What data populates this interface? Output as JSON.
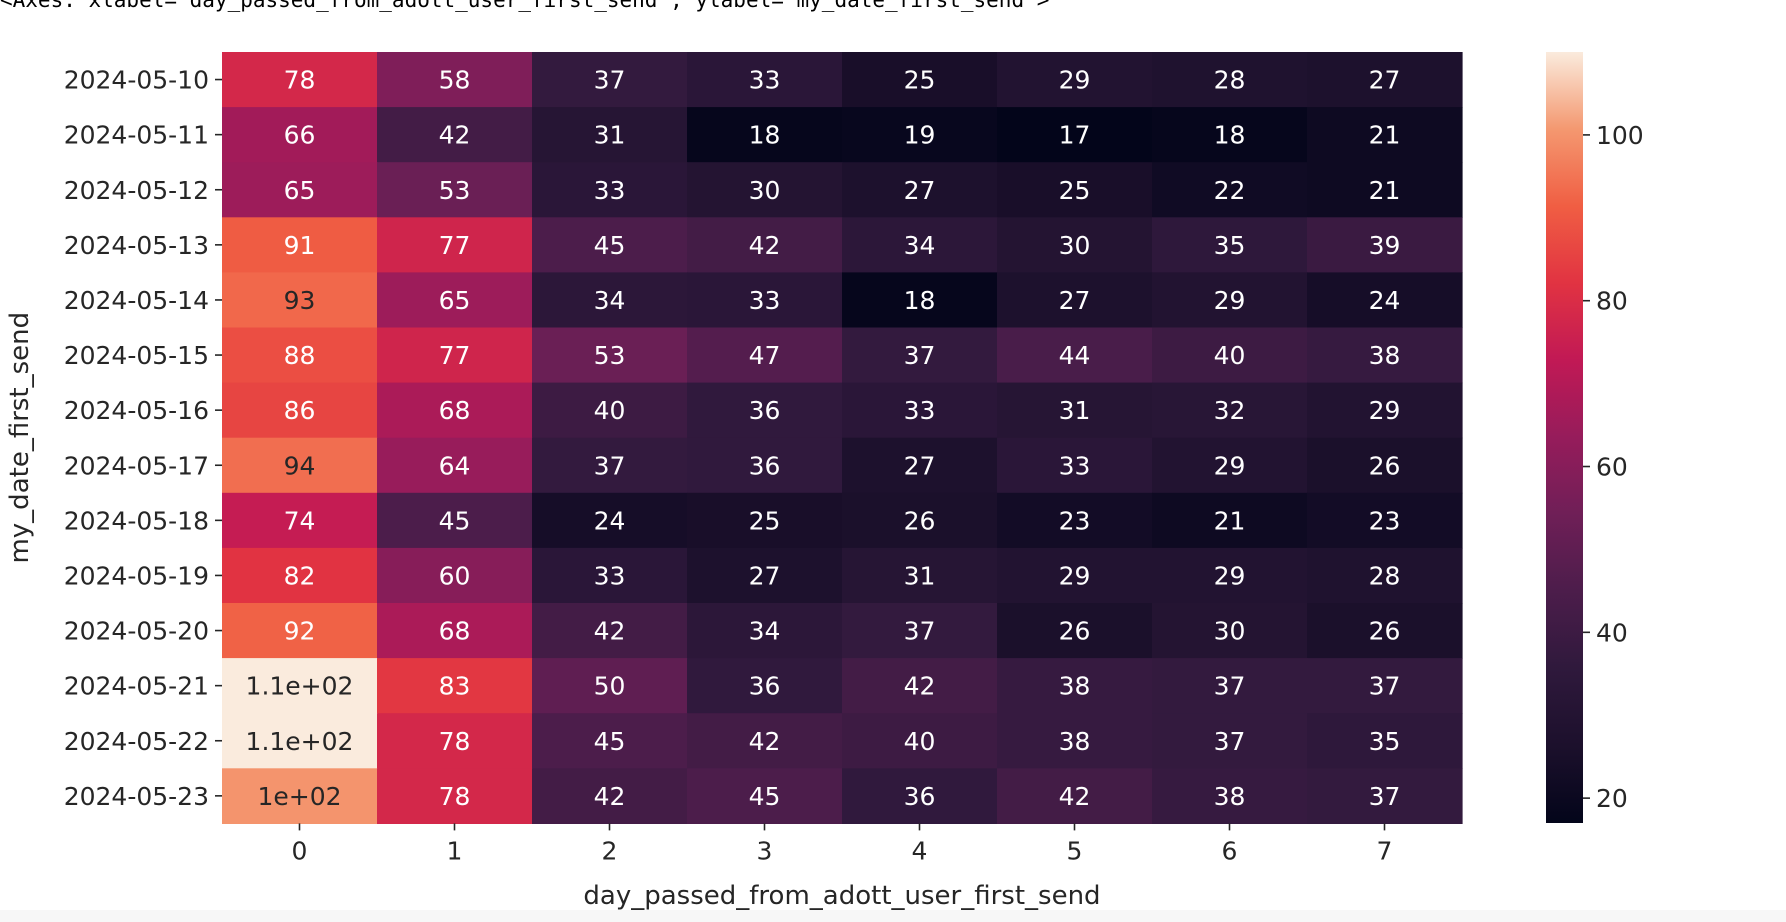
{
  "axes_repr": "<Axes: xlabel='day_passed_from_adott_user_first_send', ylabel='my_date_first_send'>",
  "colors": {
    "cmap": "rocket",
    "text_dark": "#262626",
    "cell_text_light": "#ffffff"
  },
  "chart_data": {
    "type": "heatmap",
    "xlabel": "day_passed_from_adott_user_first_send",
    "ylabel": "my_date_first_send",
    "x_categories": [
      "0",
      "1",
      "2",
      "3",
      "4",
      "5",
      "6",
      "7"
    ],
    "y_categories": [
      "2024-05-10",
      "2024-05-11",
      "2024-05-12",
      "2024-05-13",
      "2024-05-14",
      "2024-05-15",
      "2024-05-16",
      "2024-05-17",
      "2024-05-18",
      "2024-05-19",
      "2024-05-20",
      "2024-05-21",
      "2024-05-22",
      "2024-05-23"
    ],
    "values": [
      [
        78,
        58,
        37,
        33,
        25,
        29,
        28,
        27
      ],
      [
        66,
        42,
        31,
        18,
        19,
        17,
        18,
        21
      ],
      [
        65,
        53,
        33,
        30,
        27,
        25,
        22,
        21
      ],
      [
        91,
        77,
        45,
        42,
        34,
        30,
        35,
        39
      ],
      [
        93,
        65,
        34,
        33,
        18,
        27,
        29,
        24
      ],
      [
        88,
        77,
        53,
        47,
        37,
        44,
        40,
        38
      ],
      [
        86,
        68,
        40,
        36,
        33,
        31,
        32,
        29
      ],
      [
        94,
        64,
        37,
        36,
        27,
        33,
        29,
        26
      ],
      [
        74,
        45,
        24,
        25,
        26,
        23,
        21,
        23
      ],
      [
        82,
        60,
        33,
        27,
        31,
        29,
        29,
        28
      ],
      [
        92,
        68,
        42,
        34,
        37,
        26,
        30,
        26
      ],
      [
        110,
        83,
        50,
        36,
        42,
        38,
        37,
        37
      ],
      [
        110,
        78,
        45,
        42,
        40,
        38,
        37,
        35
      ],
      [
        100,
        78,
        42,
        45,
        36,
        42,
        38,
        37
      ]
    ],
    "annotations": [
      [
        "78",
        "58",
        "37",
        "33",
        "25",
        "29",
        "28",
        "27"
      ],
      [
        "66",
        "42",
        "31",
        "18",
        "19",
        "17",
        "18",
        "21"
      ],
      [
        "65",
        "53",
        "33",
        "30",
        "27",
        "25",
        "22",
        "21"
      ],
      [
        "91",
        "77",
        "45",
        "42",
        "34",
        "30",
        "35",
        "39"
      ],
      [
        "93",
        "65",
        "34",
        "33",
        "18",
        "27",
        "29",
        "24"
      ],
      [
        "88",
        "77",
        "53",
        "47",
        "37",
        "44",
        "40",
        "38"
      ],
      [
        "86",
        "68",
        "40",
        "36",
        "33",
        "31",
        "32",
        "29"
      ],
      [
        "94",
        "64",
        "37",
        "36",
        "27",
        "33",
        "29",
        "26"
      ],
      [
        "74",
        "45",
        "24",
        "25",
        "26",
        "23",
        "21",
        "23"
      ],
      [
        "82",
        "60",
        "33",
        "27",
        "31",
        "29",
        "29",
        "28"
      ],
      [
        "92",
        "68",
        "42",
        "34",
        "37",
        "26",
        "30",
        "26"
      ],
      [
        "1.1e+02",
        "83",
        "50",
        "36",
        "42",
        "38",
        "37",
        "37"
      ],
      [
        "1.1e+02",
        "78",
        "45",
        "42",
        "40",
        "38",
        "37",
        "35"
      ],
      [
        "1e+02",
        "78",
        "42",
        "45",
        "36",
        "42",
        "38",
        "37"
      ]
    ],
    "colorbar": {
      "range": [
        17,
        110
      ],
      "ticks": [
        20,
        40,
        60,
        80,
        100
      ]
    },
    "grid": false,
    "legend": "colorbar-right"
  }
}
